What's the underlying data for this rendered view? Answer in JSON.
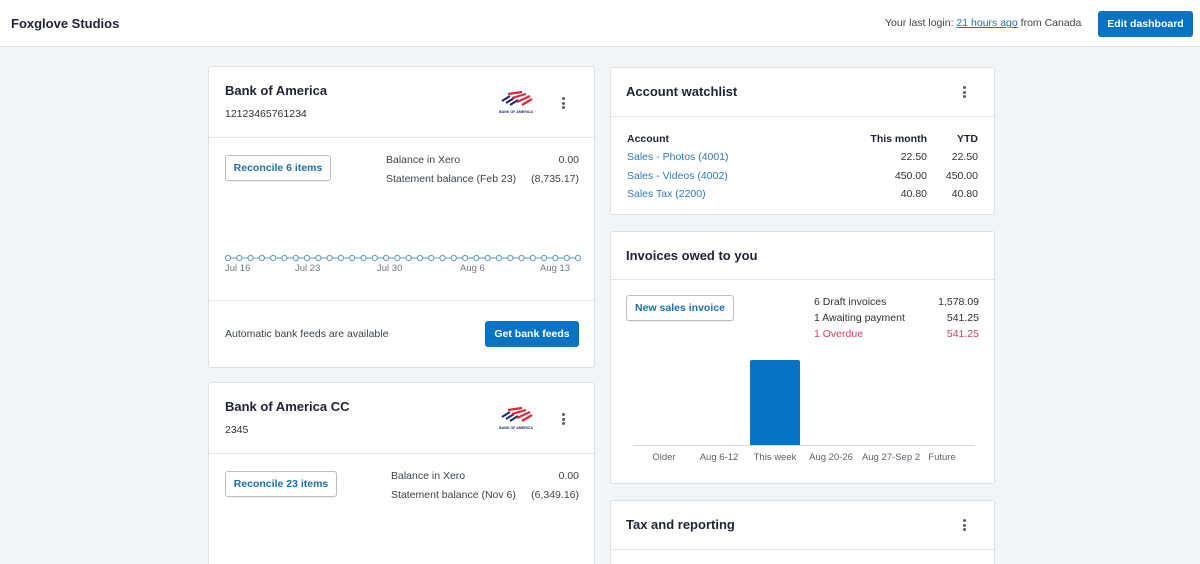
{
  "header": {
    "org_name": "Foxglove Studios",
    "login_prefix": "Your last login: ",
    "login_link": "21 hours ago",
    "login_suffix": " from Canada",
    "edit_dashboard": "Edit dashboard"
  },
  "bank_accounts": [
    {
      "name": "Bank of America",
      "number": "12123465761234",
      "logo": "bank-of-america-logo",
      "logo_text": "BANK OF AMERICA",
      "reconcile_label": "Reconcile 6 items",
      "balance_in_xero_label": "Balance in Xero",
      "balance_in_xero": "0.00",
      "statement_label": "Statement balance (Feb 23)",
      "statement_balance": "(8,735.17)",
      "feeds_text": "Automatic bank feeds are available",
      "feeds_button": "Get bank feeds"
    },
    {
      "name": "Bank of America CC",
      "number": "2345",
      "logo": "bank-of-america-logo",
      "logo_text": "BANK OF AMERICA",
      "reconcile_label": "Reconcile 23 items",
      "balance_in_xero_label": "Balance in Xero",
      "balance_in_xero": "0.00",
      "statement_label": "Statement balance (Nov 6)",
      "statement_balance": "(6,349.16)"
    }
  ],
  "watchlist": {
    "title": "Account watchlist",
    "columns": [
      "Account",
      "This month",
      "YTD"
    ],
    "rows": [
      {
        "account": "Sales - Photos (4001)",
        "this_month": "22.50",
        "ytd": "22.50"
      },
      {
        "account": "Sales - Videos (4002)",
        "this_month": "450.00",
        "ytd": "450.00"
      },
      {
        "account": "Sales Tax (2200)",
        "this_month": "40.80",
        "ytd": "40.80"
      }
    ]
  },
  "invoices": {
    "title": "Invoices owed to you",
    "new_invoice_button": "New sales invoice",
    "summary": [
      {
        "label": "6 Draft invoices",
        "value": "1,578.09"
      },
      {
        "label": "1 Awaiting payment",
        "value": "541.25"
      },
      {
        "label": "1 Overdue",
        "value": "541.25",
        "status": "overdue"
      }
    ]
  },
  "tax_reporting": {
    "title": "Tax and reporting"
  },
  "colors": {
    "accent": "#0873c4",
    "link": "#2c7bb6",
    "overdue": "#c9475f",
    "line_chart": "#5b9bc4",
    "background": "#f2f5f7"
  },
  "chart_data": [
    {
      "type": "line",
      "title": "Bank of America balance",
      "x_ticks": [
        "Jul 16",
        "Jul 23",
        "Jul 30",
        "Aug 6",
        "Aug 13"
      ],
      "points": 32,
      "values_note": "flat line, all points at same value",
      "grid": false
    },
    {
      "type": "bar",
      "title": "Invoices owed to you",
      "categories": [
        "Older",
        "Aug 6-12",
        "This week",
        "Aug 20-26",
        "Aug 27-Sep 2",
        "Future"
      ],
      "values": [
        0,
        0,
        541.25,
        0,
        0,
        0
      ],
      "ylabel": "",
      "xlabel": ""
    }
  ]
}
